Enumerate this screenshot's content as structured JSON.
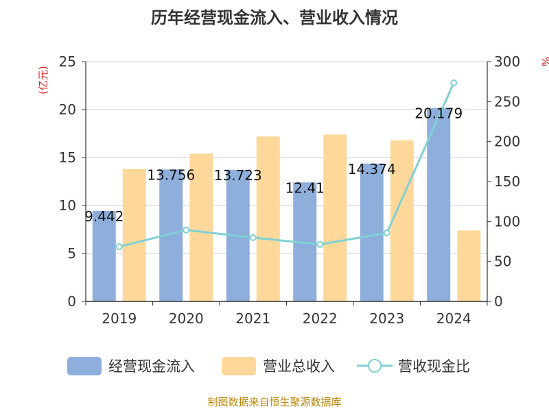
{
  "chart_data": {
    "type": "bar",
    "title": "历年经营现金流入、营业收入情况",
    "categories": [
      "2019",
      "2020",
      "2021",
      "2022",
      "2023",
      "2024"
    ],
    "series": [
      {
        "name": "经营现金流入",
        "type": "bar",
        "axis": "left",
        "color": "#8eaedc",
        "values": [
          9.442,
          13.756,
          13.723,
          12.41,
          14.374,
          20.179
        ],
        "data_labels": [
          "9.442",
          "13.756",
          "13.723",
          "12.41",
          "14.374",
          "20.179"
        ]
      },
      {
        "name": "营业总收入",
        "type": "bar",
        "axis": "left",
        "color": "#fdd89a",
        "values": [
          13.8,
          15.4,
          17.2,
          17.4,
          16.8,
          7.4
        ]
      },
      {
        "name": "营收现金比",
        "type": "line",
        "axis": "right",
        "color": "#7fd1d3",
        "values": [
          68.4,
          89.3,
          79.8,
          71.3,
          85.6,
          273.5
        ]
      }
    ],
    "y_left": {
      "unit": "(亿元)",
      "min": 0,
      "max": 25,
      "ticks": [
        "0",
        "5",
        "10",
        "15",
        "20",
        "25"
      ]
    },
    "y_right": {
      "unit": "%",
      "min": 0,
      "max": 300,
      "ticks": [
        "0",
        "50",
        "100",
        "150",
        "200",
        "250",
        "300"
      ]
    },
    "grid": true,
    "legend_position": "bottom",
    "source": "制图数据来自恒生聚源数据库"
  }
}
